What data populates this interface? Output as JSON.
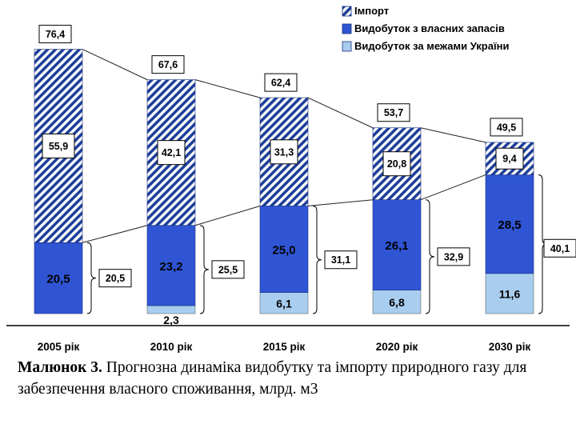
{
  "chart_data": {
    "type": "bar",
    "stacked": true,
    "categories": [
      "2005 рік",
      "2010 рік",
      "2015 рік",
      "2020 рік",
      "2030 рік"
    ],
    "series": [
      {
        "name": "Видобуток за межами України",
        "values": [
          0,
          2.3,
          6.1,
          6.8,
          11.6
        ],
        "labels": [
          "",
          "2,3",
          "6,1",
          "6,8",
          "11,6"
        ],
        "color": "#a9cdee"
      },
      {
        "name": "Видобуток з власних запасів",
        "values": [
          20.5,
          23.2,
          25.0,
          26.1,
          28.5
        ],
        "labels": [
          "20,5",
          "23,2",
          "25,0",
          "26,1",
          "28,5"
        ],
        "color": "#2f55d4"
      },
      {
        "name": "Імпорт",
        "values": [
          55.9,
          42.1,
          31.3,
          20.8,
          9.4
        ],
        "labels": [
          "55,9",
          "42,1",
          "31,3",
          "20,8",
          "9,4"
        ],
        "color": "#1e3f99"
      }
    ],
    "totals": [
      "76,4",
      "67,6",
      "62,4",
      "53,7",
      "49,5"
    ],
    "own_totals": [
      "20,5",
      "25,5",
      "31,1",
      "32,9",
      "40,1"
    ],
    "ylim": [
      0,
      80
    ],
    "legend_position": "top-right",
    "grid": false
  },
  "caption": {
    "label": "Малюнок 3.",
    "text": " Прогнозна динаміка видобутку та імпорту природного газу для забезпечення власного споживання, млрд. м3"
  }
}
